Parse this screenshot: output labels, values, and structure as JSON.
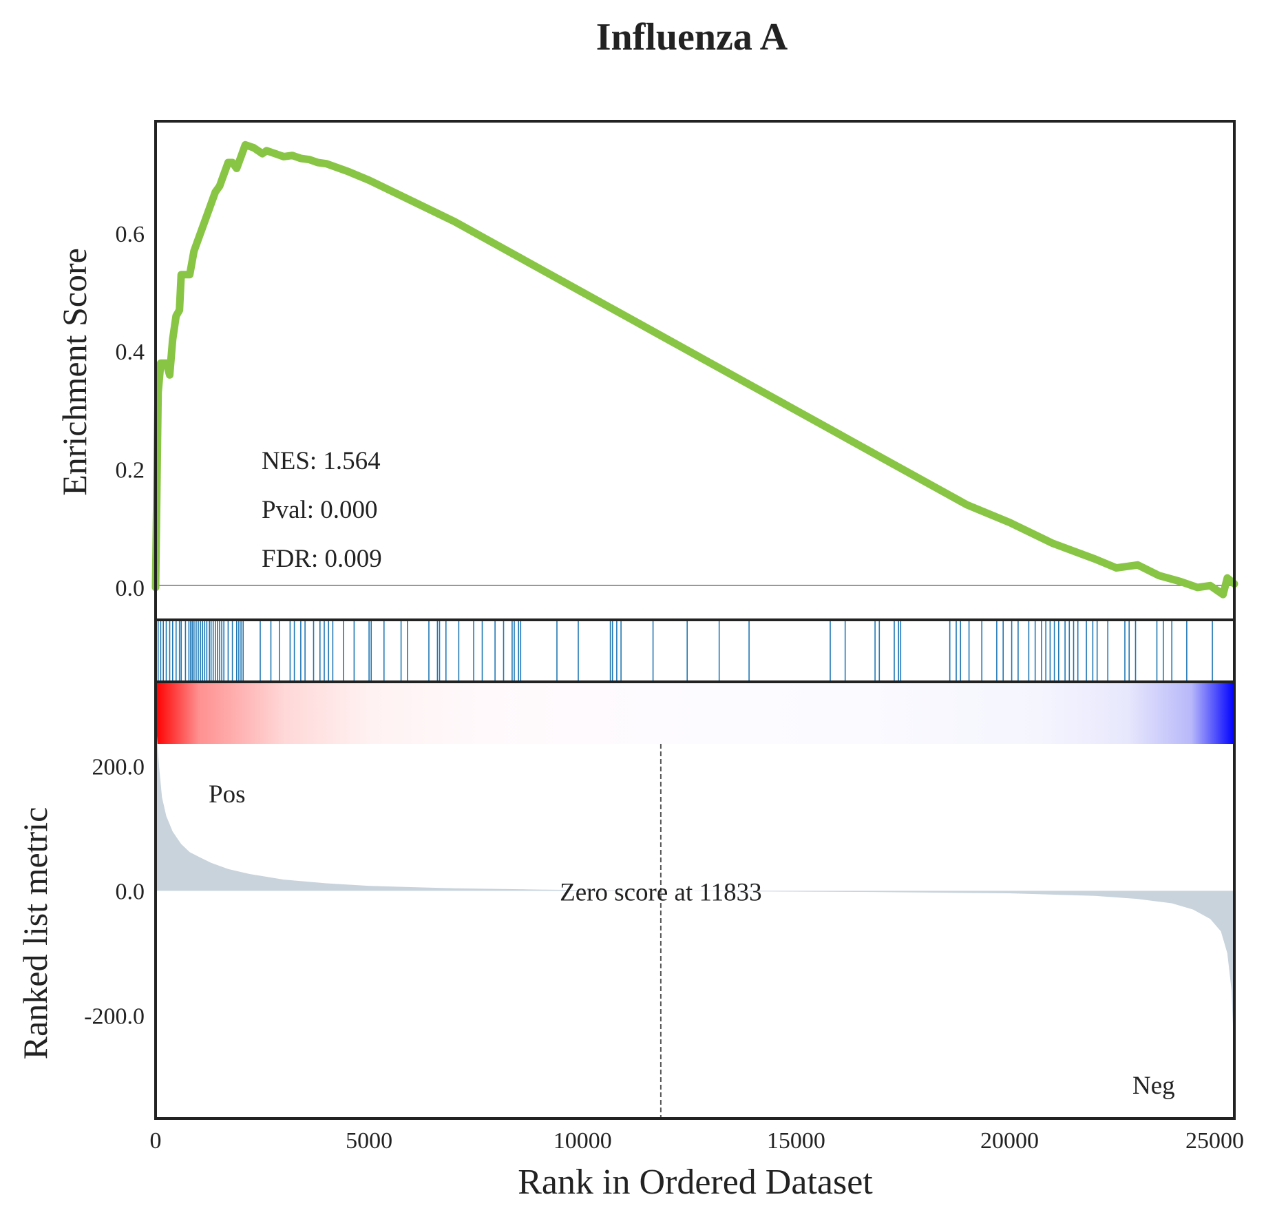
{
  "chart_data": {
    "type": "line",
    "title": "Influenza A",
    "xlabel": "Rank in Ordered Dataset",
    "xlim": [
      0,
      25264
    ],
    "x_ticks": [
      "0",
      "5000",
      "10000",
      "15000",
      "20000",
      "25000"
    ],
    "x_tick_values": [
      0,
      5000,
      10000,
      15000,
      20000,
      25000
    ],
    "enrichment": {
      "ylabel": "Enrichment Score",
      "ylim": [
        -0.055,
        0.79
      ],
      "y_ticks": [
        "0.0",
        "0.2",
        "0.4",
        "0.6"
      ],
      "y_tick_values": [
        0.0,
        0.2,
        0.4,
        0.6
      ],
      "color": "#88c544",
      "stats": {
        "nes": "NES: 1.564",
        "pval": "Pval: 0.000",
        "fdr": "FDR: 0.009"
      },
      "points": [
        [
          0,
          0.0
        ],
        [
          60,
          0.33
        ],
        [
          120,
          0.38
        ],
        [
          250,
          0.38
        ],
        [
          330,
          0.36
        ],
        [
          400,
          0.42
        ],
        [
          480,
          0.46
        ],
        [
          560,
          0.47
        ],
        [
          600,
          0.53
        ],
        [
          700,
          0.53
        ],
        [
          800,
          0.53
        ],
        [
          900,
          0.57
        ],
        [
          1000,
          0.59
        ],
        [
          1100,
          0.61
        ],
        [
          1200,
          0.63
        ],
        [
          1300,
          0.65
        ],
        [
          1400,
          0.67
        ],
        [
          1500,
          0.68
        ],
        [
          1600,
          0.7
        ],
        [
          1700,
          0.72
        ],
        [
          1800,
          0.72
        ],
        [
          1900,
          0.71
        ],
        [
          2000,
          0.73
        ],
        [
          2100,
          0.75
        ],
        [
          2300,
          0.745
        ],
        [
          2500,
          0.735
        ],
        [
          2600,
          0.74
        ],
        [
          2800,
          0.735
        ],
        [
          3000,
          0.73
        ],
        [
          3200,
          0.732
        ],
        [
          3400,
          0.727
        ],
        [
          3600,
          0.725
        ],
        [
          3800,
          0.72
        ],
        [
          4000,
          0.718
        ],
        [
          4500,
          0.705
        ],
        [
          5000,
          0.69
        ],
        [
          6000,
          0.655
        ],
        [
          7000,
          0.62
        ],
        [
          8000,
          0.58
        ],
        [
          9000,
          0.54
        ],
        [
          10000,
          0.5
        ],
        [
          11000,
          0.46
        ],
        [
          12000,
          0.42
        ],
        [
          13000,
          0.38
        ],
        [
          14000,
          0.34
        ],
        [
          15000,
          0.3
        ],
        [
          16000,
          0.26
        ],
        [
          17000,
          0.22
        ],
        [
          18000,
          0.18
        ],
        [
          19000,
          0.14
        ],
        [
          20000,
          0.11
        ],
        [
          21000,
          0.075
        ],
        [
          22000,
          0.048
        ],
        [
          22500,
          0.033
        ],
        [
          23000,
          0.038
        ],
        [
          23500,
          0.02
        ],
        [
          24000,
          0.01
        ],
        [
          24400,
          0.0
        ],
        [
          24700,
          0.003
        ],
        [
          25000,
          -0.012
        ],
        [
          25100,
          0.016
        ],
        [
          25264,
          0.006
        ]
      ]
    },
    "hits": [
      60,
      120,
      180,
      250,
      330,
      400,
      480,
      560,
      600,
      700,
      780,
      820,
      860,
      900,
      950,
      1000,
      1050,
      1100,
      1150,
      1200,
      1260,
      1300,
      1350,
      1400,
      1450,
      1500,
      1550,
      1600,
      1700,
      1800,
      1900,
      1950,
      2000,
      2050,
      2450,
      2700,
      2900,
      3150,
      3250,
      3400,
      3500,
      3700,
      3850,
      3950,
      4050,
      4150,
      4400,
      4650,
      5000,
      5050,
      5350,
      5750,
      5900,
      6400,
      6600,
      6650,
      6800,
      7100,
      7450,
      7650,
      7950,
      8150,
      8350,
      8400,
      8500,
      8550,
      9400,
      9900,
      10650,
      10700,
      10800,
      10900,
      11650,
      12450,
      13200,
      13900,
      15800,
      16150,
      16850,
      16950,
      17300,
      17400,
      17450,
      18600,
      18750,
      18850,
      19050,
      19350,
      19700,
      19850,
      20050,
      20200,
      20450,
      20600,
      20750,
      20850,
      20950,
      21050,
      21150,
      21300,
      21400,
      21500,
      21600,
      21800,
      21950,
      22050,
      22300,
      22700,
      22800,
      22950,
      23450,
      23600,
      23800,
      24150,
      24750
    ],
    "hit_color": "#1f77b4",
    "ranked_metric": {
      "ylabel": "Ranked list metric",
      "ylim": [
        -365,
        335
      ],
      "y_ticks": [
        "200.0",
        "0.0",
        "-200.0"
      ],
      "y_tick_values": [
        200,
        0,
        -200
      ],
      "fill_color": "#c8d3dc",
      "pos_label": "Pos",
      "neg_label": "Neg",
      "pos_color": "#ff0000",
      "neg_color": "#0000ff",
      "zero_cross_label": "Zero score at 11833",
      "zero_cross_rank": 11833,
      "points": [
        [
          0,
          320
        ],
        [
          30,
          250
        ],
        [
          80,
          200
        ],
        [
          150,
          150
        ],
        [
          250,
          120
        ],
        [
          400,
          95
        ],
        [
          600,
          75
        ],
        [
          800,
          62
        ],
        [
          1000,
          55
        ],
        [
          1300,
          45
        ],
        [
          1700,
          35
        ],
        [
          2200,
          27
        ],
        [
          3000,
          18
        ],
        [
          4000,
          12
        ],
        [
          5000,
          8
        ],
        [
          7000,
          4
        ],
        [
          9000,
          2
        ],
        [
          11833,
          0
        ],
        [
          14000,
          -1
        ],
        [
          17000,
          -2
        ],
        [
          20000,
          -4
        ],
        [
          22000,
          -8
        ],
        [
          23000,
          -13
        ],
        [
          23800,
          -20
        ],
        [
          24300,
          -30
        ],
        [
          24700,
          -45
        ],
        [
          24950,
          -65
        ],
        [
          25100,
          -100
        ],
        [
          25200,
          -160
        ],
        [
          25240,
          -230
        ],
        [
          25264,
          -300
        ]
      ]
    }
  }
}
